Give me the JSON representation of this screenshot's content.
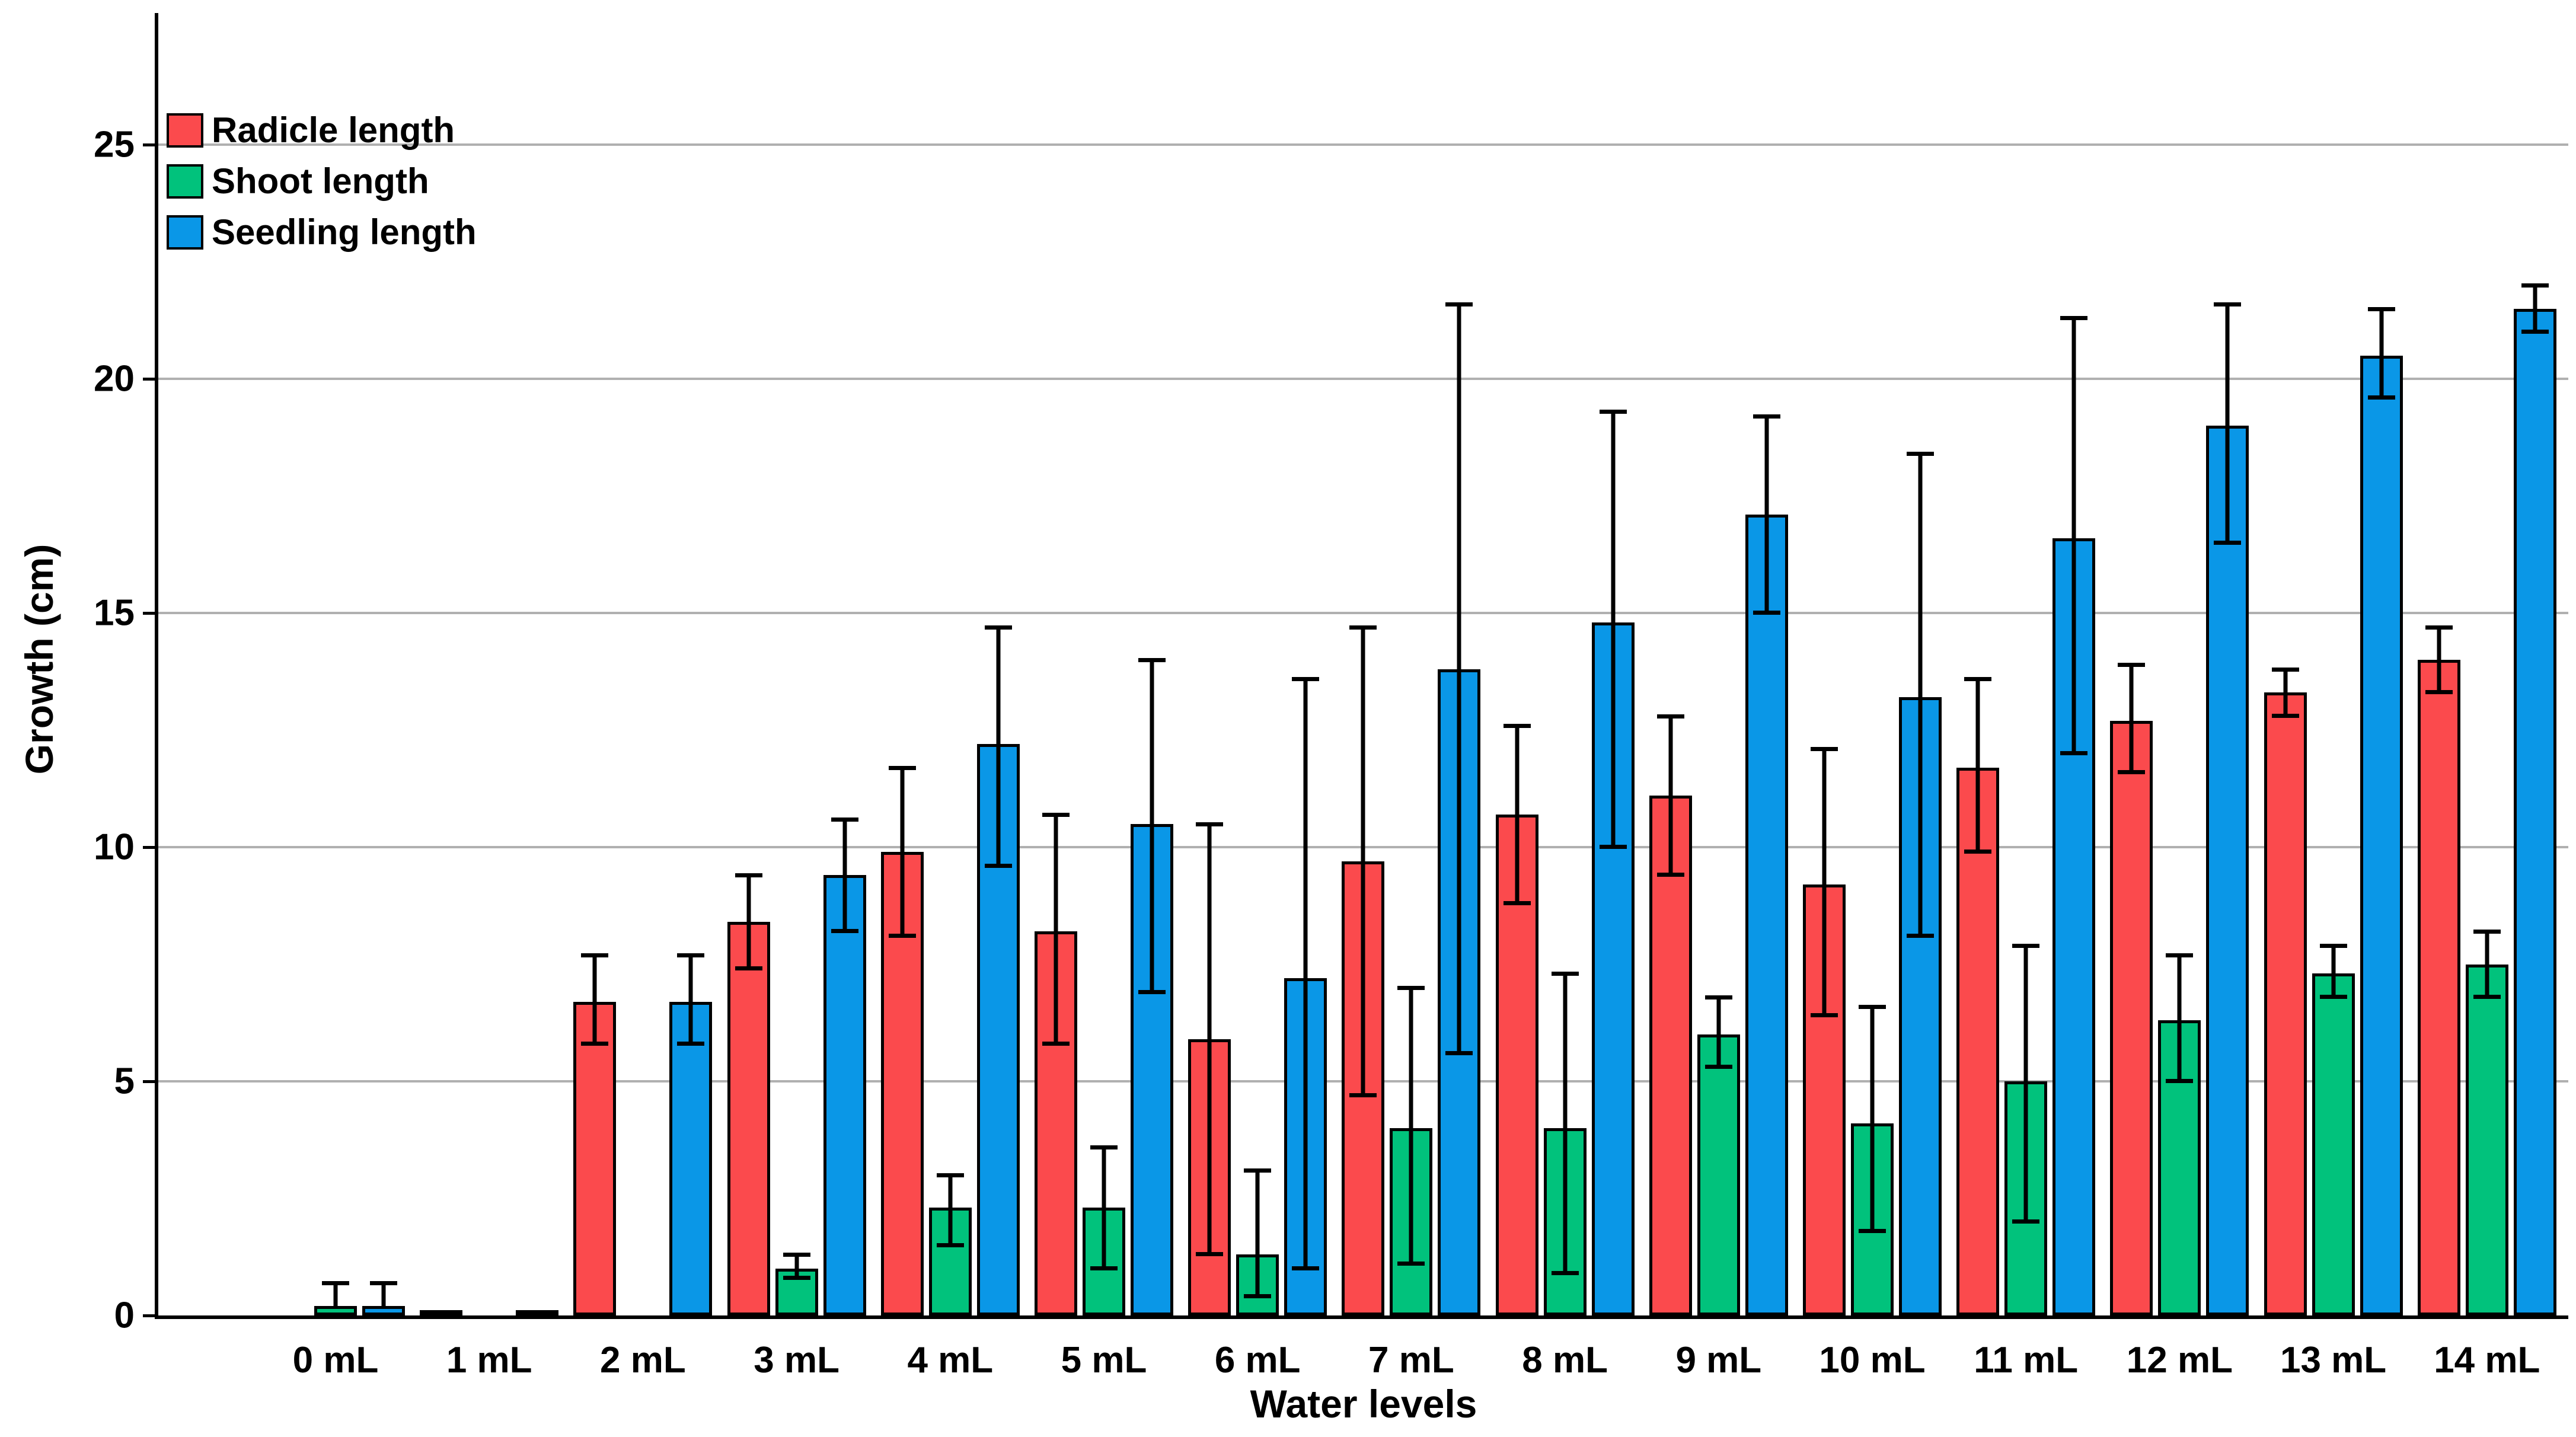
{
  "chart_data": {
    "type": "bar",
    "title": "",
    "xlabel": "Water levels",
    "ylabel": "Growth (cm)",
    "categories": [
      "0 mL",
      "1 mL",
      "2 mL",
      "3 mL",
      "4 mL",
      "5 mL",
      "6 mL",
      "7 mL",
      "8 mL",
      "9 mL",
      "10 mL",
      "11 mL",
      "12 mL",
      "13 mL",
      "14 mL"
    ],
    "yticks": [
      "0",
      "5",
      "10",
      "15",
      "20",
      "25"
    ],
    "ytick_values": [
      0,
      5,
      10,
      15,
      20,
      25
    ],
    "ylim": [
      0,
      27.8
    ],
    "grid": "horizontal-gridlines-on",
    "legend_position": "top-left-inside",
    "error_bars": true,
    "series": [
      {
        "name": "Radicle length",
        "color": "#FB4A4D",
        "values": [
          0,
          0.1,
          6.7,
          8.4,
          9.9,
          8.2,
          5.9,
          9.7,
          10.7,
          11.1,
          9.2,
          11.7,
          12.7,
          13.3,
          14.0
        ],
        "err_low": [
          null,
          null,
          5.8,
          7.4,
          8.1,
          5.8,
          1.3,
          4.7,
          8.8,
          9.4,
          6.4,
          9.9,
          11.6,
          12.8,
          13.3
        ],
        "err_high": [
          null,
          null,
          7.7,
          9.4,
          11.7,
          10.7,
          10.5,
          14.7,
          12.6,
          12.8,
          12.1,
          13.6,
          13.9,
          13.8,
          14.7
        ]
      },
      {
        "name": "Shoot length",
        "color": "#01C27C",
        "values": [
          0.2,
          0,
          0,
          1.0,
          2.3,
          2.3,
          1.3,
          4.0,
          4.0,
          6.0,
          4.1,
          5.0,
          6.3,
          7.3,
          7.5
        ],
        "err_low": [
          null,
          null,
          null,
          0.8,
          1.5,
          1.0,
          0.4,
          1.1,
          0.9,
          5.3,
          1.8,
          2.0,
          5.0,
          6.8,
          6.8
        ],
        "err_high": [
          0.7,
          null,
          null,
          1.3,
          3.0,
          3.6,
          3.1,
          7.0,
          7.3,
          6.8,
          6.6,
          7.9,
          7.7,
          7.9,
          8.2
        ]
      },
      {
        "name": "Seedling length",
        "color": "#0A97E7",
        "values": [
          0.2,
          0.1,
          6.7,
          9.4,
          12.2,
          10.5,
          7.2,
          13.8,
          14.8,
          17.1,
          13.2,
          16.6,
          19.0,
          20.5,
          21.5
        ],
        "err_low": [
          null,
          null,
          5.8,
          8.2,
          9.6,
          6.9,
          1.0,
          5.6,
          10.0,
          15.0,
          8.1,
          12.0,
          16.5,
          19.6,
          21.0
        ],
        "err_high": [
          0.7,
          null,
          7.7,
          10.6,
          14.7,
          14.0,
          13.6,
          21.6,
          19.3,
          19.2,
          18.4,
          21.3,
          21.6,
          21.5,
          22.0
        ]
      }
    ]
  },
  "colors": {
    "background": "#FFFFFF",
    "axis": "#000000",
    "gridline": "#B0B0B0",
    "error_bar": "#000000",
    "text": "#000000"
  }
}
